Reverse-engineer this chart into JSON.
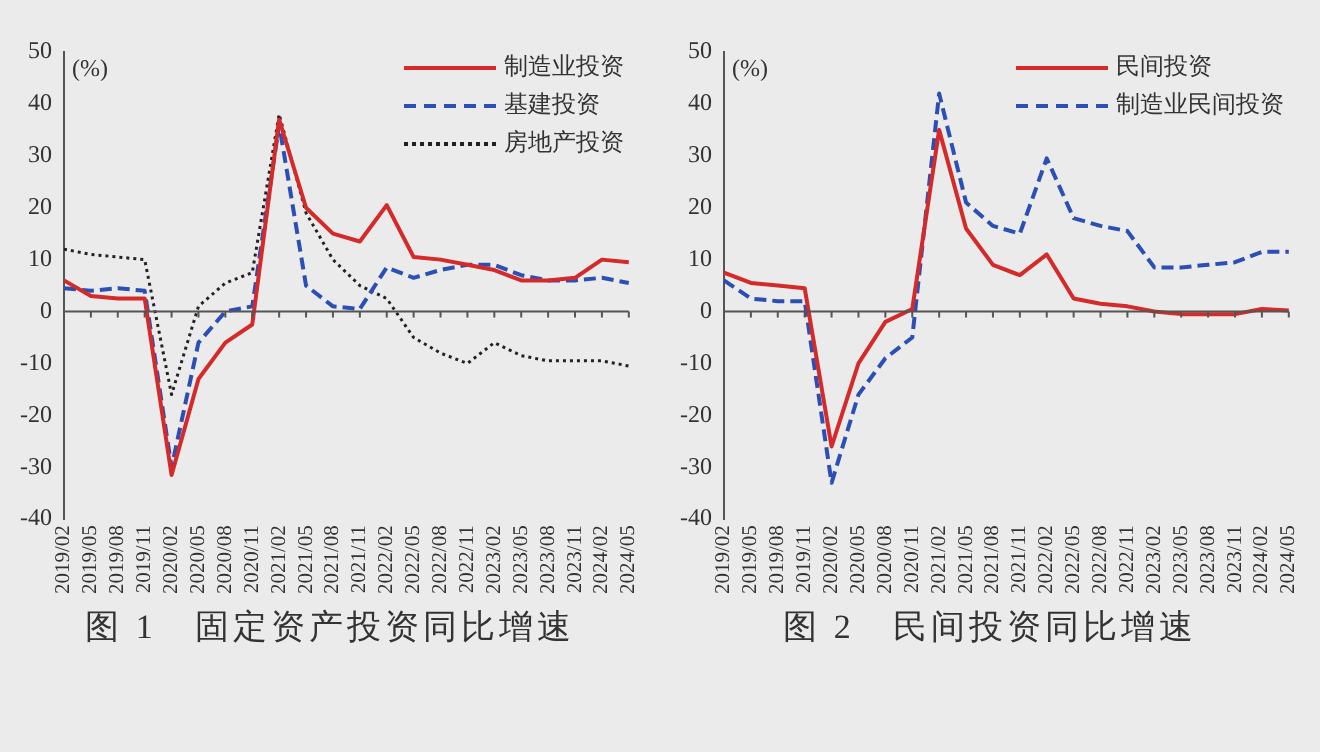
{
  "chart_data": [
    {
      "type": "line",
      "title": "图 1　固定资产投资同比增速",
      "ylabel": "(%)",
      "categories": [
        "2019/02",
        "2019/05",
        "2019/08",
        "2019/11",
        "2020/02",
        "2020/05",
        "2020/08",
        "2020/11",
        "2021/02",
        "2021/05",
        "2021/08",
        "2021/11",
        "2022/02",
        "2022/05",
        "2022/08",
        "2022/11",
        "2023/02",
        "2023/05",
        "2023/08",
        "2023/11",
        "2024/02",
        "2024/05"
      ],
      "ylim": [
        -40,
        50
      ],
      "yticks": [
        -40,
        -30,
        -20,
        -10,
        0,
        10,
        20,
        30,
        40,
        50
      ],
      "legend": "top right",
      "marker": "none",
      "series": [
        {
          "name": "制造业投资",
          "color": "#d42a2a",
          "line_style": "solid",
          "values": [
            6,
            3,
            2.5,
            2.5,
            -31.5,
            -13,
            -6,
            -2.5,
            37,
            20,
            15,
            13.5,
            20.5,
            10.5,
            10,
            9,
            8,
            6,
            6,
            6.5,
            10,
            9.5
          ]
        },
        {
          "name": "基建投资",
          "color": "#2b4fb5",
          "line_style": "dashed",
          "values": [
            4.5,
            4,
            4.5,
            4,
            -30,
            -6,
            0,
            1,
            36,
            5,
            1,
            0.5,
            8.5,
            6.5,
            8,
            9,
            9,
            7,
            6,
            6,
            6.5,
            5.5
          ]
        },
        {
          "name": "房地产投资",
          "color": "#222222",
          "line_style": "dotted",
          "values": [
            12,
            11,
            10.5,
            10,
            -16,
            1,
            5.5,
            7.5,
            38,
            19,
            10,
            5,
            2.5,
            -5,
            -8,
            -10,
            -6,
            -8.5,
            -9.5,
            -9.5,
            -9.5,
            -10.5
          ]
        }
      ]
    },
    {
      "type": "line",
      "title": "图 2　民间投资同比增速",
      "ylabel": "(%)",
      "categories": [
        "2019/02",
        "2019/05",
        "2019/08",
        "2019/11",
        "2020/02",
        "2020/05",
        "2020/08",
        "2020/11",
        "2021/02",
        "2021/05",
        "2021/08",
        "2021/11",
        "2022/02",
        "2022/05",
        "2022/08",
        "2022/11",
        "2023/02",
        "2023/05",
        "2023/08",
        "2023/11",
        "2024/02",
        "2024/05"
      ],
      "ylim": [
        -40,
        50
      ],
      "yticks": [
        -40,
        -30,
        -20,
        -10,
        0,
        10,
        20,
        30,
        40,
        50
      ],
      "legend": "top right",
      "marker": "none",
      "series": [
        {
          "name": "民间投资",
          "color": "#d42a2a",
          "line_style": "solid",
          "values": [
            7.5,
            5.5,
            5,
            4.5,
            -26,
            -10,
            -2,
            0.5,
            35,
            16,
            9,
            7,
            11,
            2.5,
            1.5,
            1,
            0,
            -0.5,
            -0.5,
            -0.5,
            0.5,
            0.2
          ]
        },
        {
          "name": "制造业民间投资",
          "color": "#2b4fb5",
          "line_style": "dashed",
          "values": [
            6,
            2.5,
            2,
            2,
            -33,
            -16,
            -9,
            -5,
            42,
            21,
            16.5,
            15,
            29.5,
            18,
            16.5,
            15.5,
            8.5,
            8.5,
            9,
            9.5,
            11.5,
            11.5
          ]
        }
      ]
    }
  ]
}
